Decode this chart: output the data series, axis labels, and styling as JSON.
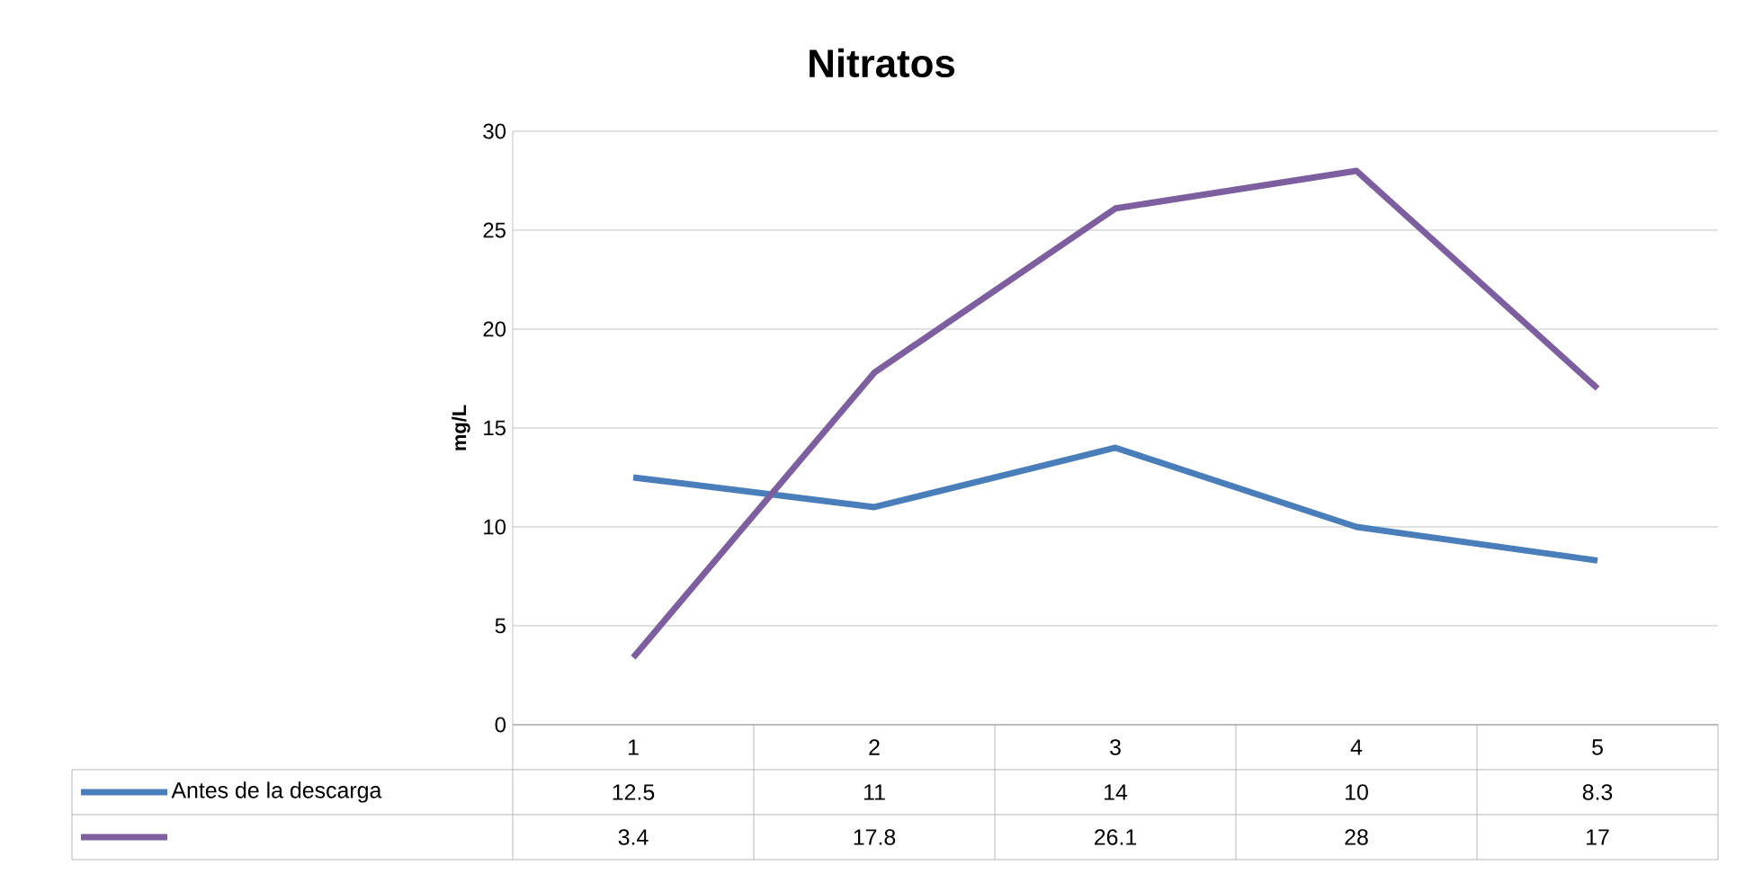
{
  "chart_data": {
    "type": "line",
    "title": "Nitratos",
    "ylabel": "mg/L",
    "categories": [
      "1",
      "2",
      "3",
      "4",
      "5"
    ],
    "series": [
      {
        "name": "Antes de la descarga",
        "color": "#4a7ebb",
        "values": [
          12.5,
          11,
          14,
          10,
          8.3
        ]
      },
      {
        "color": "#7d5fa0",
        "values": [
          3.4,
          17.8,
          26.1,
          28,
          17
        ]
      }
    ],
    "ylim": [
      0,
      30
    ],
    "yticks": [
      0,
      5,
      10,
      15,
      20,
      25,
      30
    ],
    "grid": "y",
    "legend": "bottom",
    "data_labels": true,
    "marker": "none",
    "line_style": "solid"
  }
}
